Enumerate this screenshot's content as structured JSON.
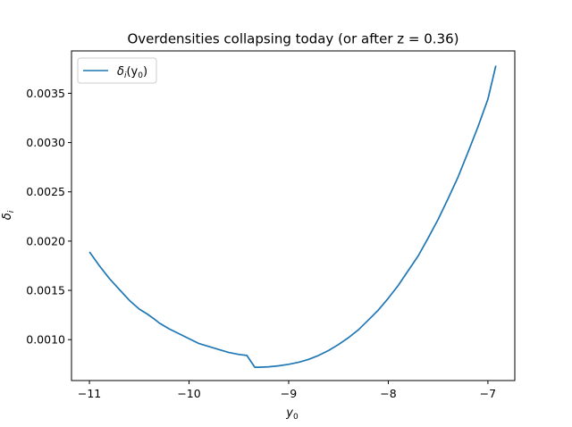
{
  "chart_data": {
    "type": "line",
    "title": "Overdensities collapsing today (or after z = 0.36)",
    "xlabel": {
      "base": "y",
      "sub": "0"
    },
    "ylabel": {
      "base": "δ",
      "sub": "i"
    },
    "xlim": [
      -11.18,
      -6.73
    ],
    "ylim": [
      0.000585,
      0.00393
    ],
    "x_ticks": [
      -11,
      -10,
      -9,
      -8,
      -7
    ],
    "x_tick_labels": [
      "−11",
      "−10",
      "−9",
      "−8",
      "−7"
    ],
    "y_ticks": [
      0.001,
      0.0015,
      0.002,
      0.0025,
      0.003,
      0.0035
    ],
    "y_tick_labels": [
      "0.0010",
      "0.0015",
      "0.0020",
      "0.0025",
      "0.0030",
      "0.0035"
    ],
    "grid": false,
    "legend": {
      "placement": "upper left",
      "entry": {
        "base": "δ",
        "sub1": "i",
        "open": "(y",
        "sub2": "0",
        "close": ")"
      }
    },
    "colors": {
      "series": "#1f77b4"
    },
    "series": [
      {
        "x": [
          -11.0,
          -10.9,
          -10.8,
          -10.7,
          -10.6,
          -10.5,
          -10.42,
          -10.35,
          -10.3,
          -10.2,
          -10.1,
          -10.0,
          -9.9,
          -9.8,
          -9.7,
          -9.6,
          -9.5,
          -9.42,
          -9.34,
          -9.3,
          -9.2,
          -9.1,
          -9.0,
          -8.9,
          -8.8,
          -8.7,
          -8.6,
          -8.5,
          -8.4,
          -8.3,
          -8.2,
          -8.1,
          -8.0,
          -7.9,
          -7.8,
          -7.7,
          -7.6,
          -7.5,
          -7.4,
          -7.3,
          -7.2,
          -7.1,
          -7.0,
          -6.92
        ],
        "y": [
          0.00189,
          0.00175,
          0.00162,
          0.00151,
          0.0014,
          0.00131,
          0.00126,
          0.00121,
          0.00117,
          0.00111,
          0.00106,
          0.00101,
          0.00096,
          0.00093,
          0.0009,
          0.00087,
          0.00085,
          0.00084,
          0.00072,
          0.00072,
          0.000725,
          0.000735,
          0.00075,
          0.00077,
          0.0008,
          0.00084,
          0.00089,
          0.00095,
          0.00102,
          0.0011,
          0.0012,
          0.0013,
          0.00142,
          0.00155,
          0.0017,
          0.00185,
          0.00203,
          0.00222,
          0.00243,
          0.00265,
          0.0029,
          0.00316,
          0.00344,
          0.00378
        ]
      }
    ]
  }
}
